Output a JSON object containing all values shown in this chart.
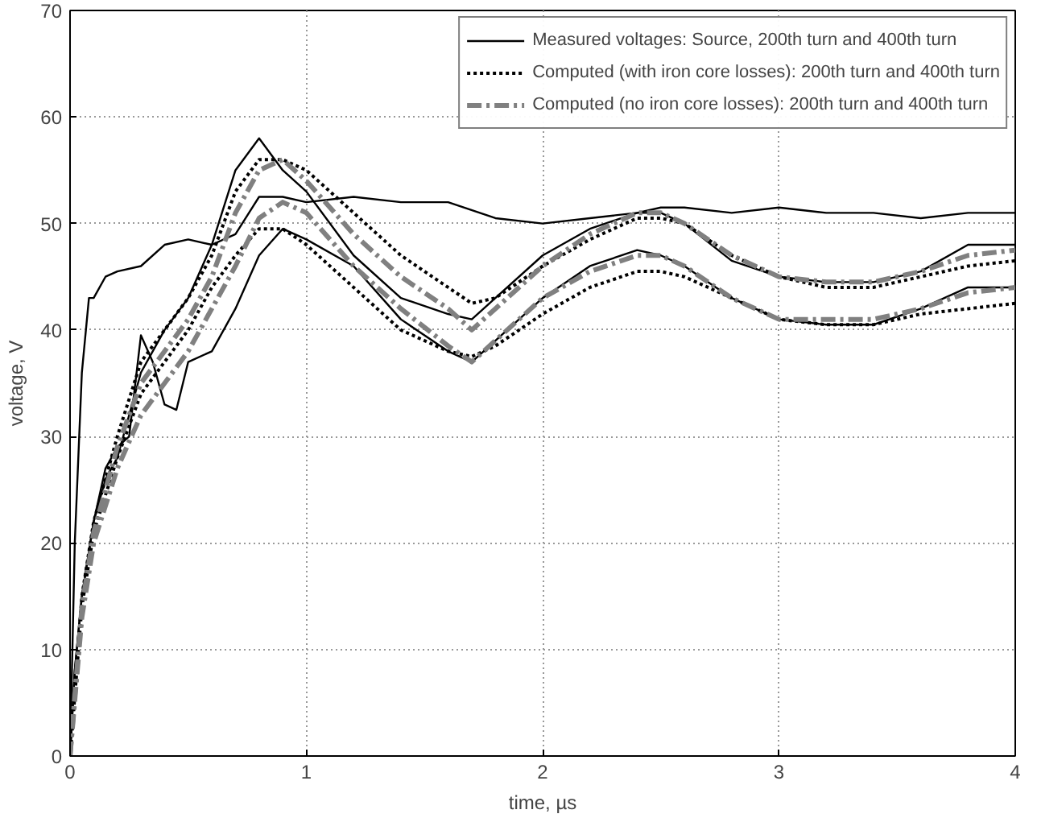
{
  "chart_data": {
    "type": "line",
    "xlabel": "time, µs",
    "ylabel": "voltage, V",
    "xlim": [
      0,
      4
    ],
    "ylim": [
      0,
      70
    ],
    "xticks": [
      0,
      1,
      2,
      3,
      4
    ],
    "yticks": [
      0,
      10,
      20,
      30,
      40,
      50,
      60,
      70
    ],
    "grid": true,
    "legend": "top right",
    "series": [
      {
        "name": "Measured voltages: Source, 200th turn and 400th turn",
        "color": "#000000",
        "line_style": "solid",
        "x": [
          0,
          0.02,
          0.05,
          0.08,
          0.1,
          0.15,
          0.2,
          0.3,
          0.4,
          0.5,
          0.6,
          0.7,
          0.8,
          0.9,
          1.0,
          1.2,
          1.4,
          1.6,
          1.8,
          2.0,
          2.2,
          2.4,
          2.5,
          2.6,
          2.8,
          3.0,
          3.2,
          3.4,
          3.6,
          3.8,
          4.0
        ],
        "values": [
          0,
          20,
          36,
          43,
          43,
          45,
          45.5,
          46,
          48,
          48.5,
          48,
          49,
          52.5,
          52.5,
          52,
          52.5,
          52,
          52,
          50.5,
          50,
          50.5,
          51,
          51.5,
          51.5,
          51,
          51.5,
          51,
          51,
          50.5,
          51,
          51
        ]
      },
      {
        "color": "#000000",
        "line_style": "solid",
        "x": [
          0,
          0.02,
          0.05,
          0.1,
          0.15,
          0.2,
          0.3,
          0.4,
          0.5,
          0.6,
          0.7,
          0.8,
          0.9,
          1.0,
          1.2,
          1.4,
          1.6,
          1.7,
          1.8,
          2.0,
          2.2,
          2.4,
          2.5,
          2.6,
          2.8,
          3.0,
          3.2,
          3.4,
          3.6,
          3.8,
          4.0
        ],
        "values": [
          0,
          8,
          15,
          22,
          26,
          28,
          36,
          40,
          43,
          48,
          55,
          58,
          55,
          53,
          47,
          43,
          41.5,
          41,
          43,
          47,
          49.5,
          51,
          51,
          50,
          46.5,
          45,
          44.5,
          44.5,
          45.5,
          48,
          48
        ]
      },
      {
        "color": "#000000",
        "line_style": "solid",
        "x": [
          0,
          0.02,
          0.05,
          0.1,
          0.15,
          0.2,
          0.25,
          0.3,
          0.35,
          0.4,
          0.45,
          0.5,
          0.6,
          0.7,
          0.8,
          0.9,
          1.0,
          1.2,
          1.4,
          1.6,
          1.7,
          1.8,
          2.0,
          2.2,
          2.4,
          2.5,
          2.6,
          2.8,
          3.0,
          3.2,
          3.4,
          3.6,
          3.8,
          4.0
        ],
        "values": [
          0,
          8,
          15,
          22,
          27,
          29,
          30,
          39.5,
          37,
          33,
          32.5,
          37,
          38,
          42,
          47,
          49.5,
          48.5,
          46,
          41,
          38,
          37,
          39,
          43,
          46,
          47.5,
          47,
          46,
          43,
          41,
          40.5,
          40.5,
          42,
          44,
          44
        ]
      },
      {
        "name": "Computed (with iron core losses): 200th turn and 400th turn",
        "color": "#000000",
        "line_style": "dotted",
        "x": [
          0,
          0.05,
          0.1,
          0.2,
          0.3,
          0.4,
          0.5,
          0.6,
          0.7,
          0.8,
          0.9,
          1.0,
          1.2,
          1.4,
          1.6,
          1.7,
          1.8,
          2.0,
          2.2,
          2.4,
          2.5,
          2.6,
          2.8,
          3.0,
          3.2,
          3.4,
          3.6,
          3.8,
          4.0
        ],
        "values": [
          0,
          15,
          22,
          30,
          37,
          40,
          43,
          47,
          53,
          56,
          56,
          55,
          51,
          47,
          44,
          42.5,
          43,
          46,
          48.5,
          50.5,
          50.5,
          50,
          47,
          45,
          44,
          44,
          45,
          46,
          46.5
        ]
      },
      {
        "color": "#000000",
        "line_style": "dotted",
        "x": [
          0,
          0.05,
          0.1,
          0.2,
          0.3,
          0.4,
          0.5,
          0.6,
          0.7,
          0.8,
          0.9,
          1.0,
          1.2,
          1.4,
          1.6,
          1.7,
          1.8,
          2.0,
          2.2,
          2.4,
          2.5,
          2.6,
          2.8,
          3.0,
          3.2,
          3.4,
          3.6,
          3.8,
          4.0
        ],
        "values": [
          0,
          14,
          21,
          28,
          34,
          37,
          40,
          44,
          47,
          49.5,
          49.5,
          48,
          44,
          40,
          38,
          37.5,
          38.5,
          41.5,
          44,
          45.5,
          45.5,
          45,
          43,
          41,
          40.5,
          40.5,
          41.5,
          42,
          42.5
        ]
      },
      {
        "name": "Computed (no iron core losses): 200th turn and 400th turn",
        "color": "#808080",
        "line_style": "dashdot",
        "x": [
          0,
          0.05,
          0.1,
          0.2,
          0.3,
          0.4,
          0.5,
          0.6,
          0.7,
          0.8,
          0.9,
          1.0,
          1.2,
          1.4,
          1.6,
          1.7,
          1.8,
          2.0,
          2.2,
          2.4,
          2.5,
          2.6,
          2.8,
          3.0,
          3.2,
          3.4,
          3.6,
          3.8,
          4.0
        ],
        "values": [
          0,
          14,
          21,
          29,
          35,
          38,
          41,
          45,
          51,
          55,
          56,
          54,
          49,
          45,
          42,
          40,
          42,
          46,
          49,
          51,
          51,
          50,
          47,
          45,
          44.5,
          44.5,
          45.5,
          47,
          47.5
        ]
      },
      {
        "color": "#808080",
        "line_style": "dashdot",
        "x": [
          0,
          0.05,
          0.1,
          0.2,
          0.3,
          0.4,
          0.5,
          0.6,
          0.7,
          0.8,
          0.9,
          1.0,
          1.2,
          1.4,
          1.6,
          1.7,
          1.8,
          2.0,
          2.2,
          2.4,
          2.5,
          2.6,
          2.8,
          3.0,
          3.2,
          3.4,
          3.6,
          3.8,
          4.0
        ],
        "values": [
          0,
          13,
          20,
          27,
          32,
          35,
          38,
          42,
          46,
          50.5,
          52,
          51,
          46,
          42,
          38.5,
          37,
          39,
          43,
          45.5,
          47,
          47,
          46,
          43,
          41,
          41,
          41,
          42,
          43.5,
          44
        ]
      }
    ]
  }
}
